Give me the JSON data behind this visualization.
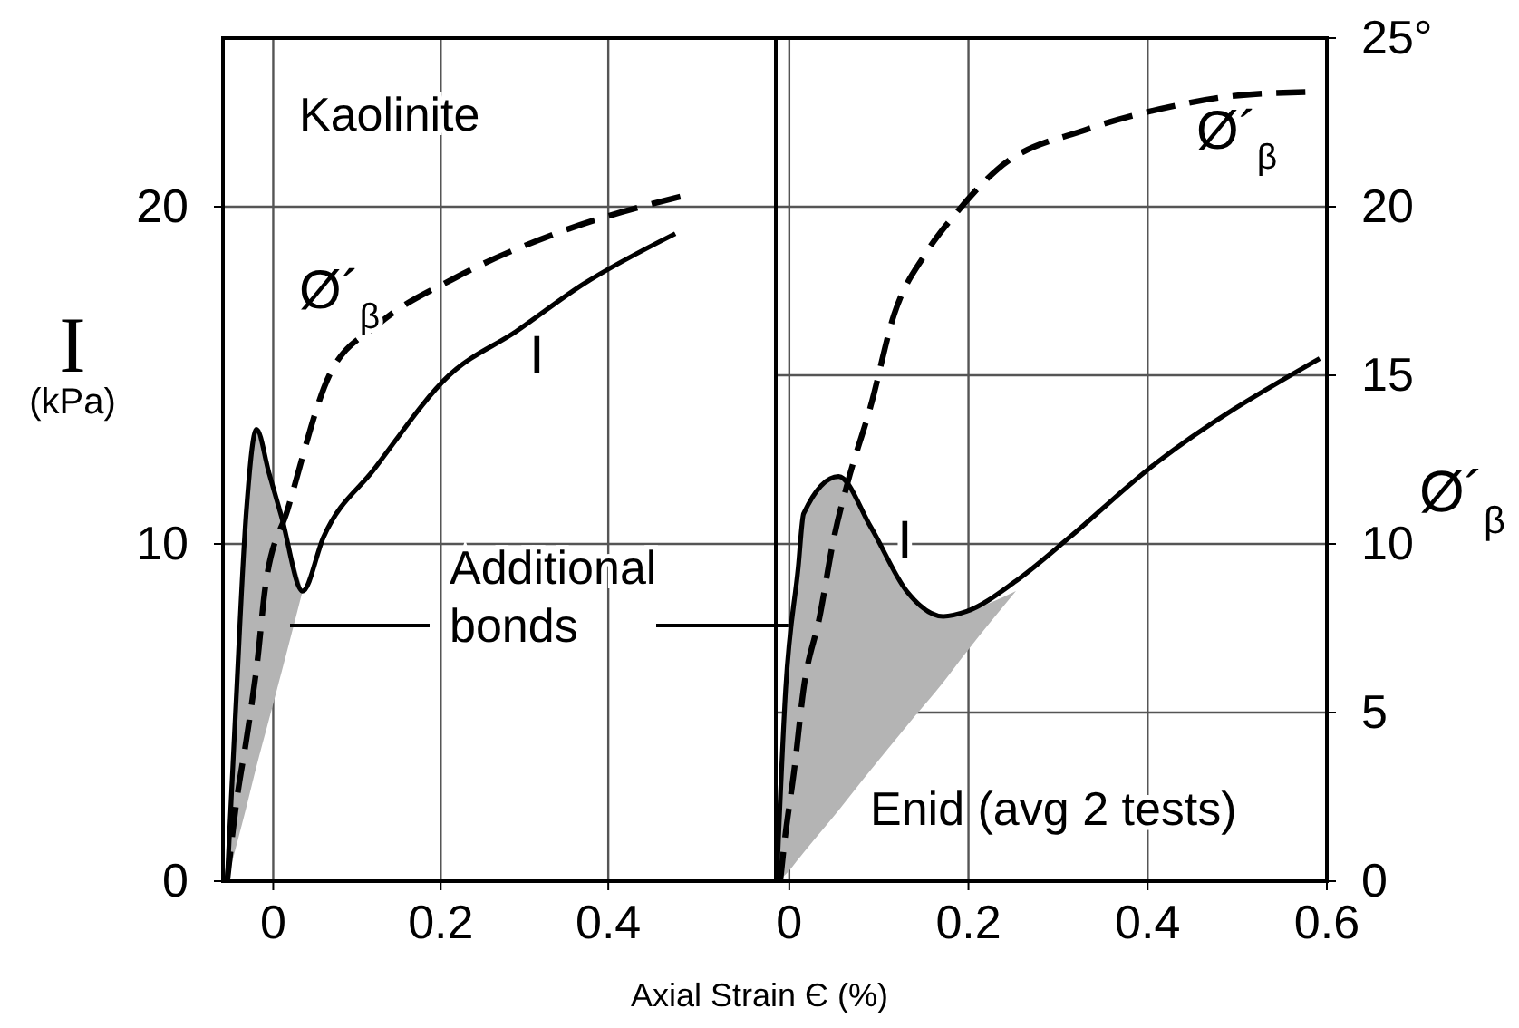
{
  "chart_data": [
    {
      "type": "line",
      "xlim": [
        -0.06,
        0.6
      ],
      "ylim": [
        0,
        25
      ],
      "xticks": [
        0,
        0.2,
        0.4
      ],
      "yticks": [
        0,
        10,
        20
      ],
      "grid": true,
      "ylabel": "I (kPa)",
      "xlabel": "Axial Strain Є (%)",
      "annotations": [
        "Kaolinite",
        "Additional bonds"
      ],
      "series": [
        {
          "name": "I",
          "color": "#000000",
          "line_style": "solid",
          "x": [
            -0.055,
            -0.045,
            -0.032,
            -0.02,
            -0.005,
            0.01,
            0.035,
            0.06,
            0.12,
            0.21,
            0.29,
            0.37,
            0.48
          ],
          "values": [
            0,
            5,
            11,
            13.4,
            12.1,
            10.8,
            8.6,
            10.2,
            12.2,
            15,
            16.3,
            17.7,
            19.2
          ],
          "lower": [
            0,
            0.96,
            2.2,
            3.4,
            4.8,
            6.2,
            8.6,
            null,
            null,
            null,
            null,
            null,
            null
          ],
          "upper": [
            0,
            5,
            11,
            13.4,
            12.1,
            10.8,
            8.6,
            null,
            null,
            null,
            null,
            null,
            null
          ]
        },
        {
          "name": "Ø´$_{β}$",
          "color": "#000000",
          "line_style": "dashed",
          "x": [
            -0.055,
            -0.043,
            -0.032,
            -0.019,
            -0.009,
            0.017,
            0.067,
            0.125,
            0.218,
            0.348,
            0.486
          ],
          "values": [
            0,
            2.5,
            4.2,
            6.5,
            8.8,
            11,
            15,
            16.5,
            17.9,
            19.3,
            20.3
          ]
        }
      ]
    },
    {
      "type": "line",
      "xlim": [
        -0.015,
        0.6
      ],
      "ylim": [
        0,
        25
      ],
      "xticks": [
        0,
        0.2,
        0.4,
        0.6
      ],
      "yticks": [
        0,
        5,
        10,
        15,
        20,
        {
          "value": 25,
          "label": "25°"
        }
      ],
      "grid": true,
      "ylabel": "Ø´$_{β}$",
      "annotations": [
        "Enid (avg 2 tests)"
      ],
      "series": [
        {
          "name": "I",
          "color": "#000000",
          "line_style": "solid",
          "x": [
            -0.014,
            -0.004,
            0.01,
            0.016,
            0.055,
            0.091,
            0.131,
            0.172,
            0.198,
            0.253,
            0.313,
            0.4,
            0.592
          ],
          "values": [
            0,
            5.7,
            9.3,
            10.9,
            12,
            10.5,
            8.6,
            7.85,
            8,
            8.9,
            10.2,
            12.2,
            15.5
          ],
          "lower": [
            0,
            0.2,
            0.65,
            0.85,
            2.1,
            3.3,
            4.6,
            5.9,
            6.8,
            8.6,
            null,
            null,
            null
          ],
          "upper": [
            0,
            5.7,
            9.3,
            10.9,
            12,
            10.5,
            8.6,
            7.85,
            8,
            8.6,
            null,
            null,
            null
          ]
        },
        {
          "name": "Ø´$_{β}$",
          "color": "#000000",
          "line_style": "dashed",
          "x": [
            -0.01,
            -0.006,
            0.006,
            0.016,
            0.034,
            0.05,
            0.065,
            0.091,
            0.117,
            0.152,
            0.186,
            0.232,
            0.333,
            0.414,
            0.501,
            0.576
          ],
          "values": [
            0,
            1,
            3.4,
            5.7,
            7.85,
            10.2,
            11.8,
            14.1,
            16.8,
            18.6,
            19.8,
            21.1,
            22.3,
            22.9,
            23.3,
            23.4
          ]
        }
      ]
    }
  ]
}
